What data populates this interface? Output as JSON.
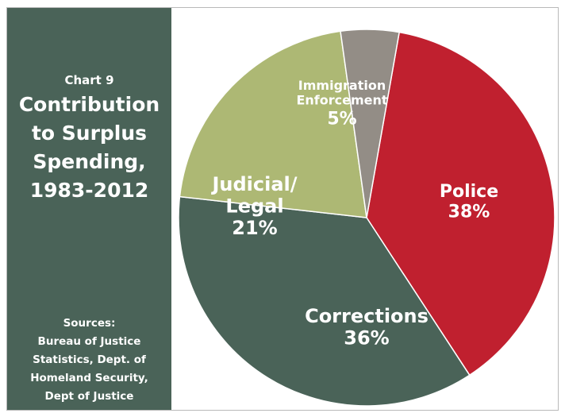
{
  "sidebar": {
    "chart_label": "Chart 9",
    "title_lines": [
      "Contribution",
      "to Surplus",
      "Spending,",
      "1983-2012"
    ],
    "sources_lines": [
      "Sources:",
      "Bureau of Justice",
      "Statistics, Dept. of",
      "Homeland Security,",
      "Dept of Justice"
    ],
    "background_color": "#4a6358"
  },
  "chart_data": {
    "type": "pie",
    "title": "Contribution to Surplus Spending, 1983-2012",
    "slices": [
      {
        "name": "Police",
        "label_lines": [
          "Police"
        ],
        "value": 38,
        "value_label": "38%",
        "color": "#c0202f"
      },
      {
        "name": "Corrections",
        "label_lines": [
          "Corrections"
        ],
        "value": 36,
        "value_label": "36%",
        "color": "#4a6358"
      },
      {
        "name": "Judicial/ Legal",
        "label_lines": [
          "Judicial/",
          "Legal"
        ],
        "value": 21,
        "value_label": "21%",
        "color": "#adb874"
      },
      {
        "name": "Immigration Enforcement",
        "label_lines": [
          "Immigration",
          "Enforcement"
        ],
        "value": 5,
        "value_label": "5%",
        "color": "#938d86"
      }
    ]
  }
}
